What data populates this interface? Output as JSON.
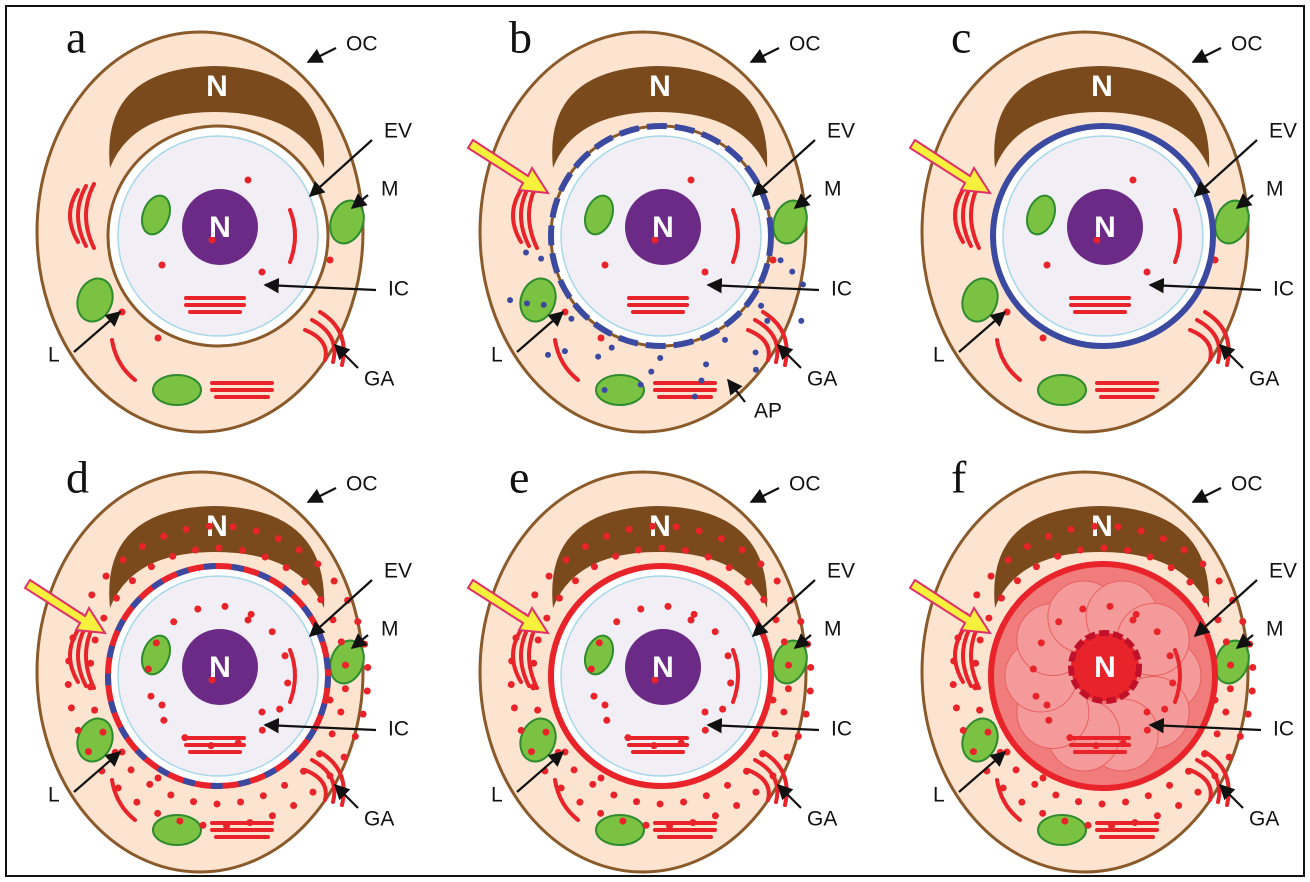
{
  "panels": [
    {
      "letter": "a",
      "nucleus_outer": "N",
      "nucleus_inner": "N",
      "labels": [
        "OC",
        "EV",
        "M",
        "IC",
        "L",
        "GA"
      ]
    },
    {
      "letter": "b",
      "nucleus_outer": "N",
      "nucleus_inner": "N",
      "labels": [
        "OC",
        "EV",
        "M",
        "IC",
        "L",
        "GA",
        "AP"
      ]
    },
    {
      "letter": "c",
      "nucleus_outer": "N",
      "nucleus_inner": "N",
      "labels": [
        "OC",
        "EV",
        "M",
        "IC",
        "L",
        "GA"
      ]
    },
    {
      "letter": "d",
      "nucleus_outer": "N",
      "nucleus_inner": "N",
      "labels": [
        "OC",
        "EV",
        "M",
        "IC",
        "L",
        "GA"
      ]
    },
    {
      "letter": "e",
      "nucleus_outer": "N",
      "nucleus_inner": "N",
      "labels": [
        "OC",
        "EV",
        "M",
        "IC",
        "L",
        "GA"
      ]
    },
    {
      "letter": "f",
      "nucleus_outer": "N",
      "nucleus_inner": "N",
      "labels": [
        "OC",
        "EV",
        "M",
        "IC",
        "L",
        "GA"
      ]
    }
  ]
}
